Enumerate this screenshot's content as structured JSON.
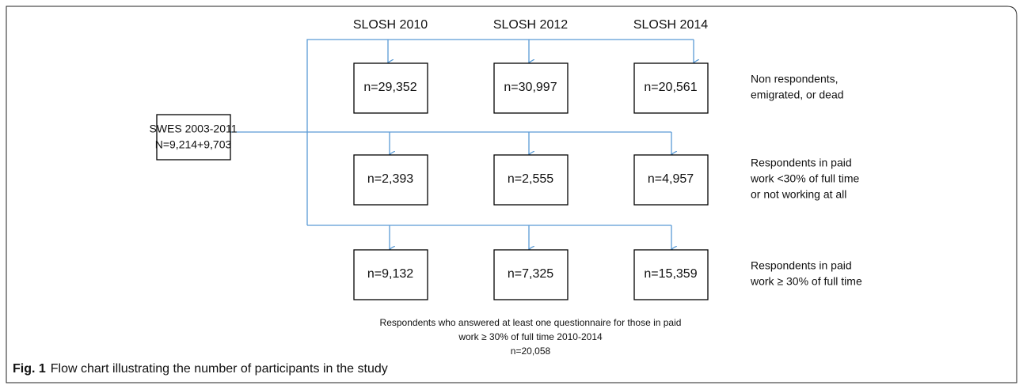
{
  "columns": [
    "SLOSH 2010",
    "SLOSH 2012",
    "SLOSH 2014"
  ],
  "source": {
    "label": "SWES 2003-2011",
    "n": "N=9,214+9,703"
  },
  "rows": [
    {
      "cells": [
        "n=29,352",
        "n=30,997",
        "n=20,561"
      ],
      "label": [
        "Non respondents,",
        "emigrated, or dead"
      ]
    },
    {
      "cells": [
        "n=2,393",
        "n=2,555",
        "n=4,957"
      ],
      "label": [
        "Respondents in paid",
        "work <30% of full time",
        "or not working at all"
      ]
    },
    {
      "cells": [
        "n=9,132",
        "n=7,325",
        "n=15,359"
      ],
      "label": [
        "Respondents in paid",
        "work ≥ 30% of full time"
      ]
    }
  ],
  "note": [
    "Respondents who answered at least one questionnaire for those in paid",
    "work ≥ 30% of full time 2010-2014",
    "n=20,058"
  ],
  "caption": {
    "label": "Fig. 1",
    "text": "Flow chart illustrating the number of participants in the study"
  }
}
